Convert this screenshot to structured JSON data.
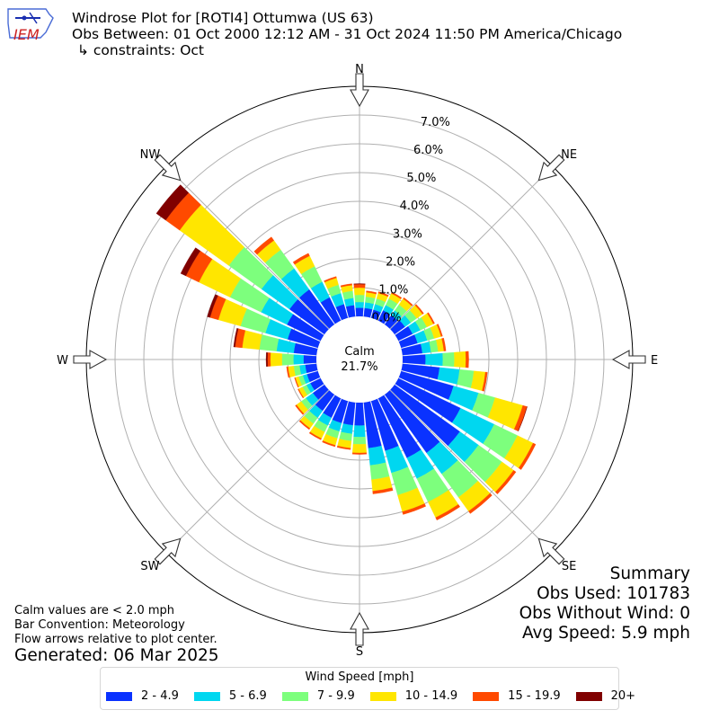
{
  "header": {
    "title": "Windrose Plot for [ROTI4] Ottumwa (US 63)",
    "obs_between": "Obs Between: 01 Oct 2000 12:12 AM - 31 Oct 2024 11:50 PM America/Chicago",
    "constraints": "↳ constraints: Oct"
  },
  "logo": {
    "text": "IEM",
    "color": "#cc2222"
  },
  "summary": {
    "heading": "Summary",
    "obs_used": "Obs Used: 101783",
    "obs_without_wind": "Obs Without Wind: 0",
    "avg_speed": "Avg Speed: 5.9 mph"
  },
  "notes": {
    "calm_note": "Calm values are < 2.0 mph",
    "bar_convention": "Bar Convention: Meteorology",
    "flow_arrows": "Flow arrows relative to plot center.",
    "generated": "Generated: 06 Mar 2025"
  },
  "chart_data": {
    "type": "windrose",
    "calm_label": "Calm",
    "calm_value": "21.7%",
    "radial_ticks": [
      "0.0%",
      "1.0%",
      "2.0%",
      "3.0%",
      "4.0%",
      "5.0%",
      "6.0%",
      "7.0%"
    ],
    "radial_range": [
      0,
      8
    ],
    "compass": [
      "N",
      "NE",
      "E",
      "SE",
      "S",
      "SW",
      "W",
      "NW"
    ],
    "legend_title": "Wind Speed [mph]",
    "speed_bins": [
      {
        "label": "2 - 4.9",
        "color": "#0a32ff"
      },
      {
        "label": "5 - 6.9",
        "color": "#00d7f0"
      },
      {
        "label": "7 - 9.9",
        "color": "#7dff7d"
      },
      {
        "label": "10 - 14.9",
        "color": "#ffe600"
      },
      {
        "label": "15 - 19.9",
        "color": "#ff4a00"
      },
      {
        "label": "20+",
        "color": "#800000"
      }
    ],
    "directions_deg": [
      0,
      10,
      20,
      30,
      40,
      50,
      60,
      70,
      80,
      90,
      100,
      110,
      120,
      130,
      140,
      150,
      160,
      170,
      180,
      190,
      200,
      210,
      220,
      230,
      240,
      250,
      260,
      270,
      280,
      290,
      300,
      310,
      320,
      330,
      340,
      350
    ],
    "cumulative_pct": [
      [
        0.3,
        0.5,
        0.75,
        1.0,
        1.12,
        1.14
      ],
      [
        0.3,
        0.5,
        0.7,
        0.85,
        0.9,
        0.9
      ],
      [
        0.3,
        0.5,
        0.7,
        0.9,
        0.95,
        0.95
      ],
      [
        0.4,
        0.6,
        0.85,
        1.05,
        1.1,
        1.1
      ],
      [
        0.4,
        0.6,
        0.85,
        1.1,
        1.15,
        1.15
      ],
      [
        0.45,
        0.7,
        0.95,
        1.2,
        1.25,
        1.25
      ],
      [
        0.55,
        0.85,
        1.1,
        1.35,
        1.4,
        1.4
      ],
      [
        0.6,
        0.95,
        1.2,
        1.45,
        1.5,
        1.5
      ],
      [
        0.7,
        1.0,
        1.25,
        1.45,
        1.52,
        1.52
      ],
      [
        0.8,
        1.4,
        1.8,
        2.2,
        2.3,
        2.3
      ],
      [
        1.3,
        2.0,
        2.5,
        2.9,
        2.97,
        2.97
      ],
      [
        1.9,
        2.8,
        3.4,
        4.4,
        4.55,
        4.56
      ],
      [
        2.4,
        3.7,
        4.6,
        5.2,
        5.3,
        5.3
      ],
      [
        2.8,
        3.6,
        4.6,
        5.1,
        5.2,
        5.2
      ],
      [
        2.5,
        3.4,
        4.4,
        5.0,
        5.1,
        5.1
      ],
      [
        2.3,
        3.1,
        4.0,
        4.6,
        4.7,
        4.7
      ],
      [
        1.8,
        2.6,
        3.4,
        4.0,
        4.1,
        4.1
      ],
      [
        1.6,
        2.2,
        2.7,
        3.1,
        3.2,
        3.2
      ],
      [
        0.8,
        1.2,
        1.45,
        1.75,
        1.8,
        1.8
      ],
      [
        0.8,
        1.1,
        1.35,
        1.6,
        1.65,
        1.65
      ],
      [
        0.8,
        1.1,
        1.35,
        1.6,
        1.65,
        1.65
      ],
      [
        0.75,
        1.05,
        1.3,
        1.55,
        1.6,
        1.6
      ],
      [
        0.7,
        1.0,
        1.25,
        1.45,
        1.5,
        1.5
      ],
      [
        0.5,
        0.8,
        1.0,
        1.2,
        1.25,
        1.25
      ],
      [
        0.4,
        0.55,
        0.7,
        0.85,
        0.88,
        0.88
      ],
      [
        0.4,
        0.55,
        0.7,
        0.82,
        0.85,
        0.85
      ],
      [
        0.4,
        0.6,
        0.8,
        1.0,
        1.05,
        1.05
      ],
      [
        0.45,
        0.8,
        1.2,
        1.6,
        1.7,
        1.75
      ],
      [
        0.8,
        1.4,
        2.0,
        2.6,
        2.85,
        2.9
      ],
      [
        1.1,
        1.9,
        2.8,
        3.6,
        3.9,
        4.0
      ],
      [
        1.3,
        2.3,
        3.5,
        4.7,
        5.2,
        5.4
      ],
      [
        1.5,
        2.7,
        4.1,
        6.2,
        6.8,
        7.2
      ],
      [
        1.5,
        2.4,
        3.2,
        3.6,
        3.75,
        3.75
      ],
      [
        0.9,
        1.5,
        2.1,
        2.5,
        2.6,
        2.6
      ],
      [
        0.5,
        0.9,
        1.2,
        1.45,
        1.5,
        1.5
      ],
      [
        0.4,
        0.65,
        0.9,
        1.1,
        1.15,
        1.15
      ]
    ]
  }
}
